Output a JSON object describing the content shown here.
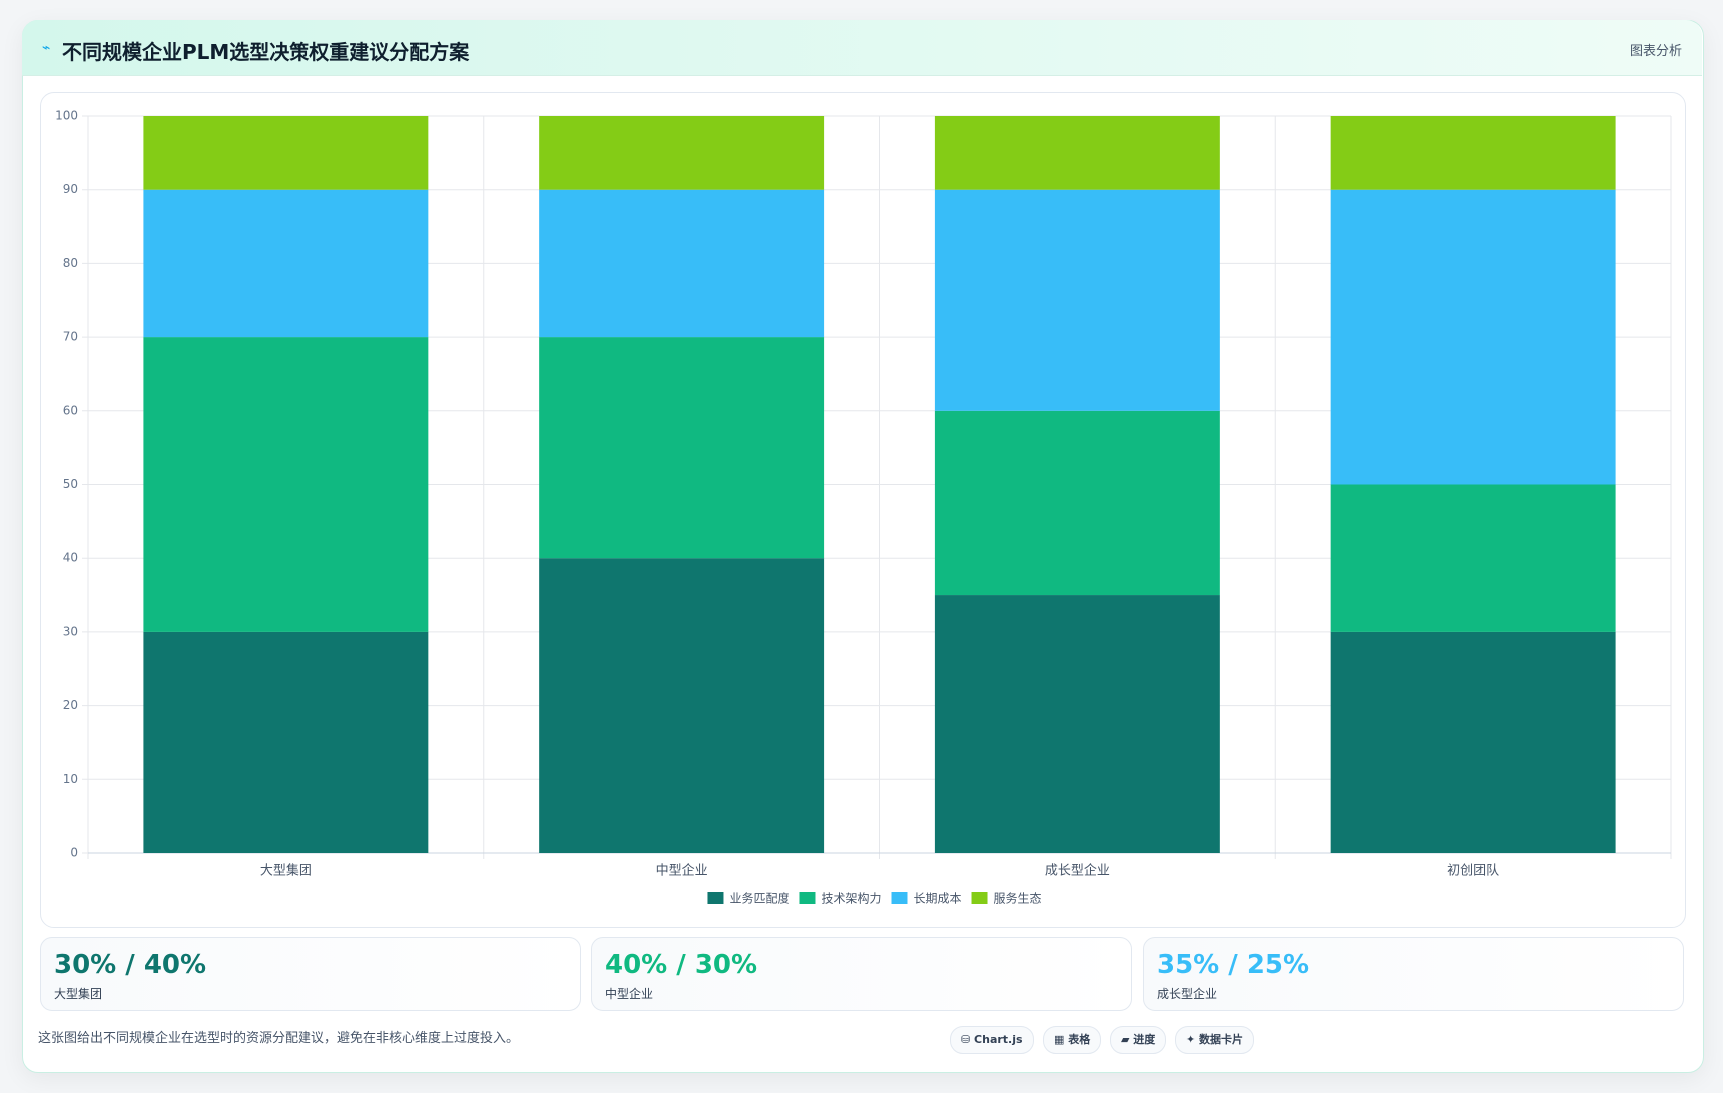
{
  "header": {
    "title": "不同规模企业PLM选型决策权重建议分配方案",
    "action": "图表分析"
  },
  "chart_data": {
    "type": "stacked_bar",
    "categories": [
      "大型集团",
      "中型企业",
      "成长型企业",
      "初创团队"
    ],
    "series": [
      {
        "name": "业务匹配度",
        "color": "#0f766e",
        "values": [
          30,
          40,
          35,
          30
        ]
      },
      {
        "name": "技术架构力",
        "color": "#10b981",
        "values": [
          40,
          30,
          25,
          20
        ]
      },
      {
        "name": "长期成本",
        "color": "#38bdf8",
        "values": [
          20,
          20,
          30,
          40
        ]
      },
      {
        "name": "服务生态",
        "color": "#84cc16",
        "values": [
          10,
          10,
          10,
          10
        ]
      }
    ],
    "ylim": [
      0,
      100
    ],
    "yticks": [
      0,
      10,
      20,
      30,
      40,
      50,
      60,
      70,
      80,
      90,
      100
    ],
    "grid": true,
    "legend": "bottom"
  },
  "cards": [
    {
      "value": "30% / 40%",
      "label": "大型集团",
      "color": "#0f766e"
    },
    {
      "value": "40% / 30%",
      "label": "中型企业",
      "color": "#10b981"
    },
    {
      "value": "35% / 25%",
      "label": "成长型企业",
      "color": "#38bdf8"
    }
  ],
  "footer": {
    "note": "这张图给出不同规模企业在选型时的资源分配建议，避免在非核心维度上过度投入。",
    "buttons": [
      "Chart.js",
      "表格",
      "进度",
      "数据卡片"
    ]
  }
}
